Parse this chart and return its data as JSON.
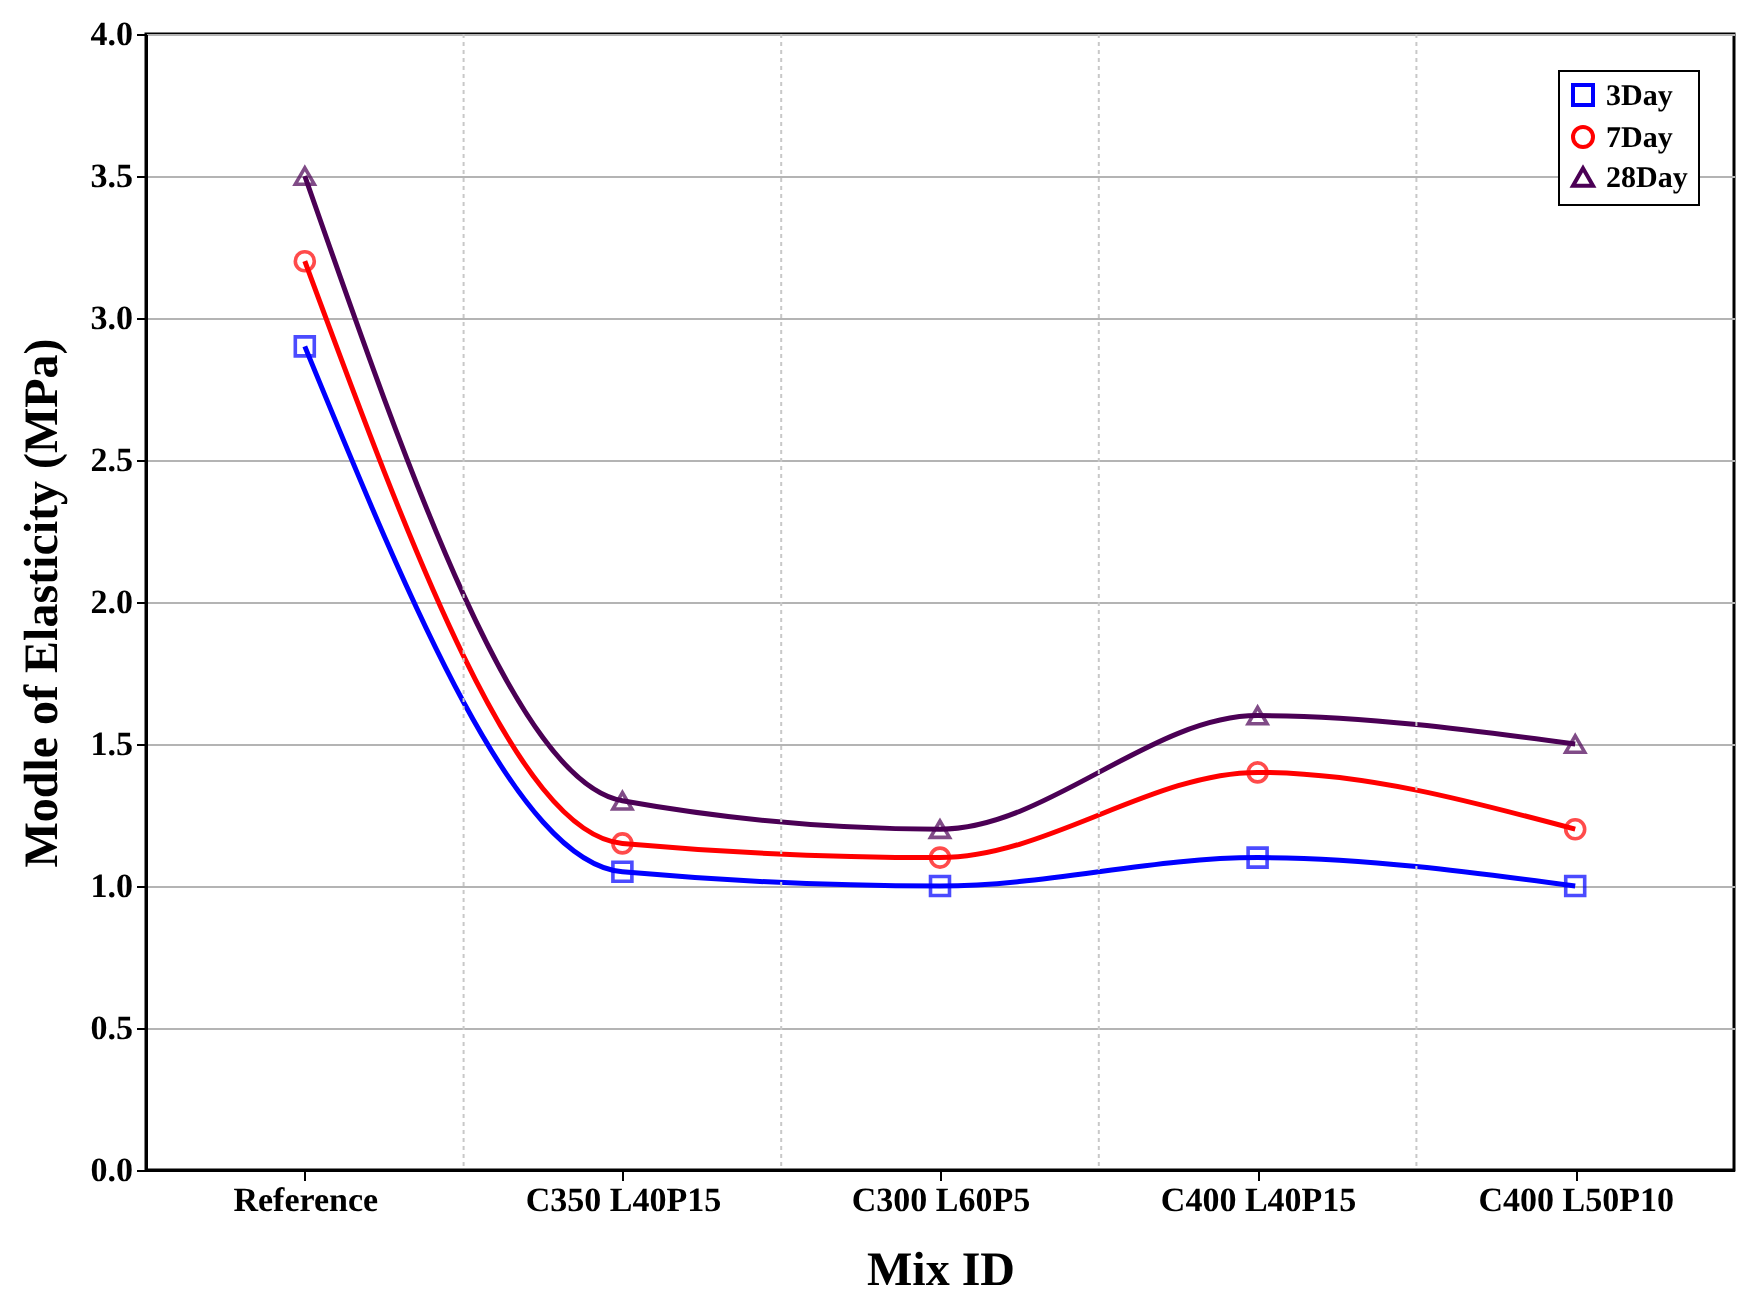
{
  "chart_data": {
    "type": "line",
    "xlabel": "Mix ID",
    "ylabel": "Modle of Elasticity (MPa)",
    "categories": [
      "Reference",
      "C350 L40P15",
      "C300 L60P5",
      "C400 L40P15",
      "C400 L50P10"
    ],
    "series": [
      {
        "name": "3Day",
        "color": "#0000ff",
        "marker": "square",
        "values": [
          2.9,
          1.05,
          1.0,
          1.1,
          1.0
        ]
      },
      {
        "name": "7Day",
        "color": "#ff0000",
        "marker": "circle",
        "values": [
          3.2,
          1.15,
          1.1,
          1.4,
          1.2
        ]
      },
      {
        "name": "28Day",
        "color": "#4b0055",
        "marker": "triangle",
        "values": [
          3.5,
          1.3,
          1.2,
          1.6,
          1.5
        ]
      }
    ],
    "ylim": [
      0,
      4
    ],
    "yticks": [
      {
        "value": 0,
        "label": "0.0"
      },
      {
        "value": 0.5,
        "label": "0.5"
      },
      {
        "value": 1,
        "label": "1.0"
      },
      {
        "value": 1.5,
        "label": "1.5"
      },
      {
        "value": 2,
        "label": "2.0"
      },
      {
        "value": 2.5,
        "label": "2.5"
      },
      {
        "value": 3,
        "label": "3.0"
      },
      {
        "value": 3.5,
        "label": "3.5"
      },
      {
        "value": 4,
        "label": "4.0"
      }
    ],
    "grid": true,
    "legend": "top right",
    "line_style": "solid"
  }
}
